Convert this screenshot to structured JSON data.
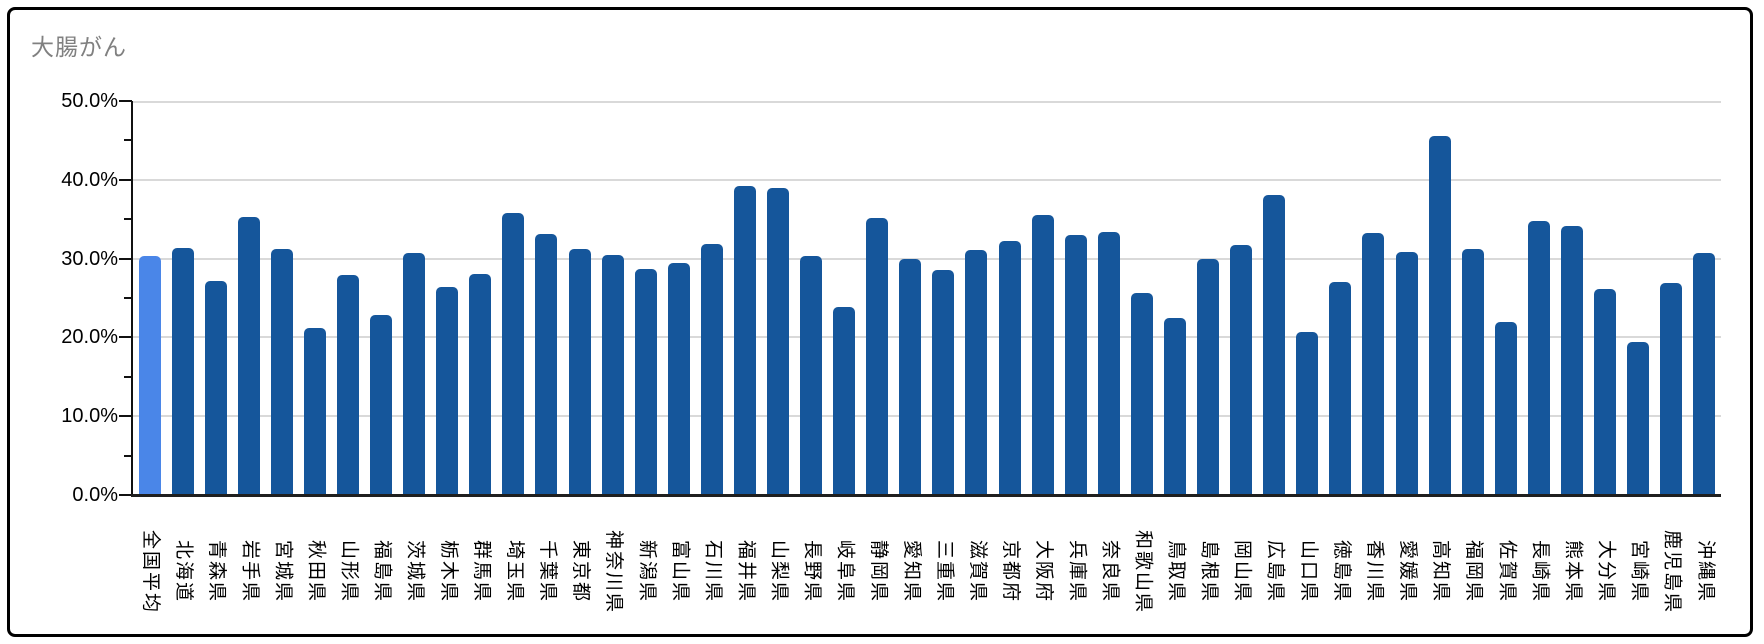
{
  "chart_title": "大腸がん",
  "colors": {
    "bar": "#15569b",
    "highlight_bar": "#4a86e8",
    "gridline": "#d9d9d9",
    "axis": "#111111",
    "title": "#808080",
    "border": "#000000"
  },
  "chart_data": {
    "type": "bar",
    "title": "大腸がん",
    "xlabel": "",
    "ylabel": "",
    "ylim": [
      0,
      50
    ],
    "ytick_interval": 10,
    "ytick_labels": [
      "50.0%",
      "40.0%",
      "30.0%",
      "20.0%",
      "10.0%",
      "0.0%"
    ],
    "grid": "horizontal",
    "legend_position": "none",
    "highlight_index": 0,
    "highlight_category": "全国平均",
    "categories": [
      "全国平均",
      "北海道",
      "青森県",
      "岩手県",
      "宮城県",
      "秋田県",
      "山形県",
      "福島県",
      "茨城県",
      "栃木県",
      "群馬県",
      "埼玉県",
      "千葉県",
      "東京都",
      "神奈川県",
      "新潟県",
      "富山県",
      "石川県",
      "福井県",
      "山梨県",
      "長野県",
      "岐阜県",
      "静岡県",
      "愛知県",
      "三重県",
      "滋賀県",
      "京都府",
      "大阪府",
      "兵庫県",
      "奈良県",
      "和歌山県",
      "鳥取県",
      "島根県",
      "岡山県",
      "広島県",
      "山口県",
      "徳島県",
      "香川県",
      "愛媛県",
      "高知県",
      "福岡県",
      "佐賀県",
      "長崎県",
      "熊本県",
      "大分県",
      "宮崎県",
      "鹿児島県",
      "沖縄県"
    ],
    "values": [
      30.3,
      31.3,
      27.2,
      35.3,
      31.2,
      21.2,
      27.9,
      22.9,
      30.7,
      26.4,
      28.0,
      35.8,
      33.1,
      31.2,
      30.5,
      28.7,
      29.5,
      31.8,
      39.2,
      39.0,
      30.3,
      23.8,
      35.1,
      29.9,
      28.5,
      31.1,
      32.2,
      35.5,
      33.0,
      33.4,
      25.6,
      22.5,
      29.9,
      31.7,
      38.1,
      20.7,
      27.0,
      33.2,
      30.9,
      45.5,
      31.2,
      21.9,
      34.8,
      34.2,
      26.1,
      19.4,
      26.9,
      30.7
    ]
  }
}
